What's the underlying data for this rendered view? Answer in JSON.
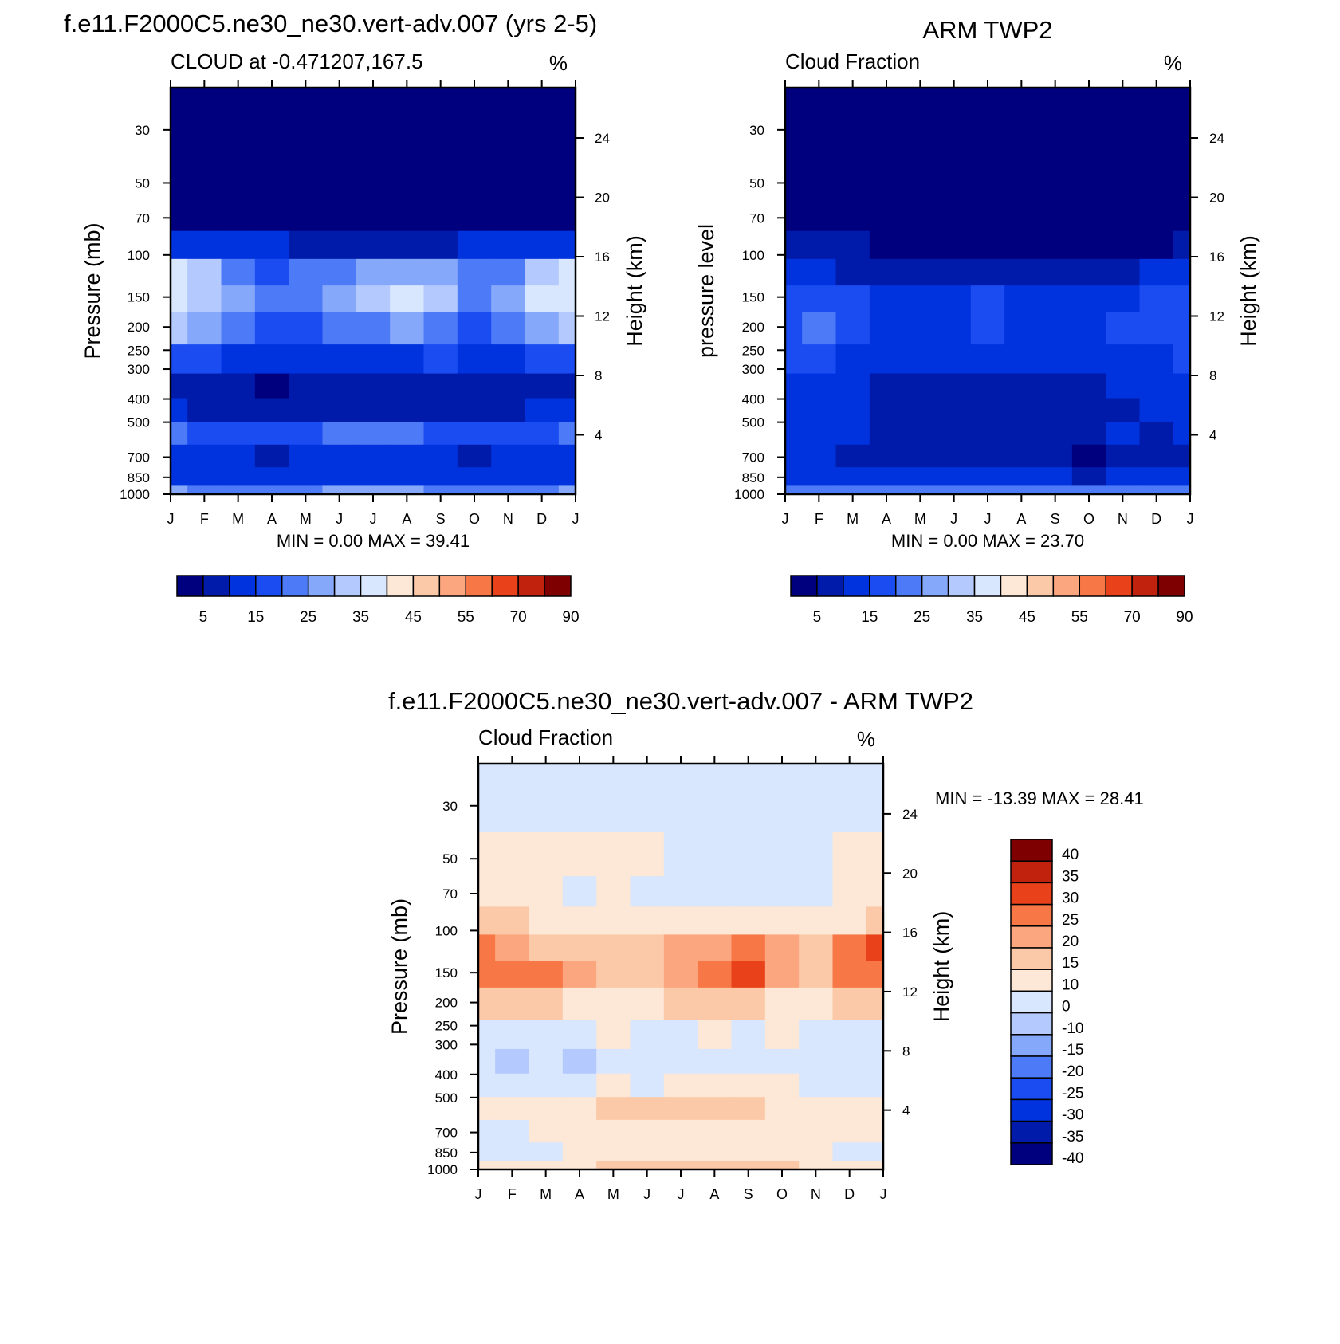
{
  "colors": {
    "abs_levels": [
      "#00007f",
      "#001aaa",
      "#0033dd",
      "#1a4cf2",
      "#4d7af7",
      "#86a8fa",
      "#b4c9fd",
      "#d8e7fd",
      "#fde7d6",
      "#fcc9a8",
      "#fba67e",
      "#f87747",
      "#e9421b",
      "#c0220d",
      "#7f0000"
    ],
    "diff_levels": [
      "#00007f",
      "#001aaa",
      "#0033dd",
      "#1a4cf2",
      "#4d7af7",
      "#86a8fa",
      "#b4c9fd",
      "#d8e7fd",
      "#fde7d6",
      "#fcc9a8",
      "#fba67e",
      "#f87747",
      "#e9421b",
      "#c0220d",
      "#7f0000"
    ]
  },
  "chart_data": [
    {
      "id": "model",
      "type": "heatmap",
      "title": "f.e11.F2000C5.ne30_ne30.vert-adv.007 (yrs 2-5)",
      "left_subtitle": "CLOUD at -0.471207,167.5",
      "units": "%",
      "ylabel": "Pressure (mb)",
      "right_ylabel": "Height (km)",
      "x_ticklabels": [
        "J",
        "F",
        "M",
        "A",
        "M",
        "J",
        "J",
        "A",
        "S",
        "O",
        "N",
        "D",
        "J"
      ],
      "y_ticklabels": [
        "30",
        "50",
        "70",
        "100",
        "150",
        "200",
        "250",
        "300",
        "400",
        "500",
        "700",
        "850",
        "1000"
      ],
      "height_ticklabels": [
        "24",
        "20",
        "16",
        "12",
        "8",
        "4"
      ],
      "minmax_text": "MIN =   0.00 MAX =  39.41",
      "colorbar_labels": [
        "5",
        "15",
        "25",
        "35",
        "45",
        "55",
        "70",
        "90"
      ],
      "levels": [
        0,
        5,
        10,
        15,
        20,
        25,
        30,
        35,
        40,
        45,
        50,
        55,
        60,
        70,
        80,
        90,
        100
      ],
      "x": [
        1,
        2,
        3,
        4,
        5,
        6,
        7,
        8,
        9,
        10,
        11,
        12,
        13
      ],
      "pressure": [
        30,
        70,
        90,
        120,
        150,
        200,
        280,
        350,
        450,
        550,
        700,
        850,
        1000
      ],
      "values": [
        [
          1,
          1,
          1,
          1,
          1,
          1,
          1,
          1,
          1,
          1,
          1,
          1,
          1
        ],
        [
          2,
          1,
          1,
          1,
          1,
          1,
          1,
          1,
          1,
          1,
          1,
          1,
          2
        ],
        [
          14,
          13,
          12,
          11,
          9,
          8,
          7,
          8,
          9,
          10,
          11,
          13,
          14
        ],
        [
          36,
          30,
          24,
          19,
          20,
          23,
          27,
          29,
          26,
          21,
          24,
          33,
          37
        ],
        [
          38,
          33,
          26,
          21,
          24,
          29,
          32,
          35,
          31,
          24,
          27,
          35,
          38
        ],
        [
          30,
          26,
          21,
          18,
          19,
          22,
          24,
          25,
          22,
          19,
          21,
          28,
          31
        ],
        [
          18,
          16,
          13,
          10,
          12,
          14,
          14,
          14,
          15,
          13,
          13,
          16,
          18
        ],
        [
          8,
          7,
          6,
          3,
          7,
          5,
          7,
          8,
          9,
          8,
          8,
          8,
          9
        ],
        [
          10,
          9,
          8,
          7,
          9,
          8,
          9,
          9,
          9,
          9,
          9,
          10,
          10
        ],
        [
          20,
          18,
          16,
          15,
          17,
          20,
          22,
          21,
          17,
          15,
          16,
          18,
          20
        ],
        [
          12,
          11,
          10,
          8,
          10,
          12,
          13,
          12,
          11,
          9,
          10,
          11,
          12
        ],
        [
          14,
          13,
          12,
          11,
          13,
          14,
          14,
          13,
          13,
          12,
          12,
          13,
          14
        ],
        [
          25,
          24,
          23,
          22,
          24,
          25,
          25,
          25,
          24,
          23,
          23,
          24,
          25
        ]
      ]
    },
    {
      "id": "obs",
      "type": "heatmap",
      "title": "ARM TWP2",
      "left_subtitle": "Cloud Fraction",
      "units": "%",
      "ylabel": "pressure level",
      "right_ylabel": "Height (km)",
      "x_ticklabels": [
        "J",
        "F",
        "M",
        "A",
        "M",
        "J",
        "J",
        "A",
        "S",
        "O",
        "N",
        "D",
        "J"
      ],
      "y_ticklabels": [
        "30",
        "50",
        "70",
        "100",
        "150",
        "200",
        "250",
        "300",
        "400",
        "500",
        "700",
        "850",
        "1000"
      ],
      "height_ticklabels": [
        "24",
        "20",
        "16",
        "12",
        "8",
        "4"
      ],
      "minmax_text": "MIN =   0.00 MAX =  23.70",
      "colorbar_labels": [
        "5",
        "15",
        "25",
        "35",
        "45",
        "55",
        "70",
        "90"
      ],
      "levels": [
        0,
        5,
        10,
        15,
        20,
        25,
        30,
        35,
        40,
        45,
        50,
        55,
        60,
        70,
        80,
        90,
        100
      ],
      "x": [
        1,
        2,
        3,
        4,
        5,
        6,
        7,
        8,
        9,
        10,
        11,
        12,
        13
      ],
      "pressure": [
        30,
        70,
        90,
        120,
        150,
        200,
        280,
        350,
        450,
        550,
        700,
        850,
        1000
      ],
      "values": [
        [
          1,
          1,
          1,
          1,
          1,
          1,
          1,
          1,
          1,
          1,
          1,
          1,
          1
        ],
        [
          1,
          1,
          1,
          1,
          1,
          1,
          1,
          1,
          1,
          1,
          1,
          1,
          1
        ],
        [
          6,
          6,
          5,
          3,
          2,
          2,
          3,
          2,
          2,
          2,
          3,
          4,
          7
        ],
        [
          12,
          11,
          9,
          8,
          7,
          7,
          7,
          7,
          6,
          8,
          9,
          10,
          13
        ],
        [
          17,
          17,
          15,
          12,
          11,
          14,
          15,
          13,
          11,
          13,
          14,
          15,
          18
        ],
        [
          18,
          20,
          16,
          13,
          12,
          14,
          16,
          13,
          12,
          14,
          15,
          16,
          17
        ],
        [
          17,
          18,
          14,
          12,
          11,
          12,
          12,
          12,
          11,
          12,
          13,
          14,
          15
        ],
        [
          12,
          13,
          11,
          9,
          8,
          8,
          9,
          9,
          7,
          8,
          10,
          11,
          12
        ],
        [
          12,
          13,
          12,
          9,
          7,
          7,
          7,
          7,
          6,
          7,
          9,
          10,
          11
        ],
        [
          12,
          11,
          10,
          9,
          7,
          7,
          8,
          9,
          7,
          6,
          10,
          9,
          10
        ],
        [
          11,
          10,
          9,
          8,
          5,
          7,
          6,
          7,
          6,
          4,
          7,
          8,
          9
        ],
        [
          14,
          13,
          12,
          11,
          10,
          10,
          10,
          10,
          10,
          9,
          11,
          12,
          13
        ],
        [
          22,
          22,
          21,
          21,
          20,
          20,
          20,
          20,
          20,
          20,
          21,
          21,
          22
        ]
      ]
    },
    {
      "id": "diff",
      "type": "heatmap",
      "title": "f.e11.F2000C5.ne30_ne30.vert-adv.007 - ARM TWP2",
      "left_subtitle": "Cloud Fraction",
      "units": "%",
      "ylabel": "Pressure (mb)",
      "right_ylabel": "Height (km)",
      "x_ticklabels": [
        "J",
        "F",
        "M",
        "A",
        "M",
        "J",
        "J",
        "A",
        "S",
        "O",
        "N",
        "D",
        "J"
      ],
      "y_ticklabels": [
        "30",
        "50",
        "70",
        "100",
        "150",
        "200",
        "250",
        "300",
        "400",
        "500",
        "700",
        "850",
        "1000"
      ],
      "height_ticklabels": [
        "24",
        "20",
        "16",
        "12",
        "8",
        "4"
      ],
      "minmax_text": "MIN = -13.39 MAX =  28.41",
      "colorbar_labels": [
        "40",
        "35",
        "30",
        "25",
        "20",
        "15",
        "10",
        "0",
        "-10",
        "-15",
        "-20",
        "-25",
        "-30",
        "-35",
        "-40"
      ],
      "levels": [
        -100,
        -40,
        -35,
        -30,
        -25,
        -20,
        -15,
        -10,
        0,
        10,
        15,
        20,
        25,
        30,
        35,
        40,
        100
      ],
      "x": [
        1,
        2,
        3,
        4,
        5,
        6,
        7,
        8,
        9,
        10,
        11,
        12,
        13
      ],
      "pressure": [
        30,
        50,
        70,
        90,
        120,
        150,
        200,
        280,
        350,
        450,
        550,
        700,
        850,
        1000
      ],
      "values": [
        [
          -1,
          -1,
          -1,
          -1,
          -1,
          -1,
          -1,
          -1,
          -1,
          -1,
          -1,
          -1,
          -1
        ],
        [
          1,
          1,
          1,
          1,
          1,
          1,
          -1,
          -1,
          -1,
          -1,
          -1,
          1,
          1
        ],
        [
          3,
          3,
          3,
          -1,
          3,
          -1,
          -1,
          -1,
          -1,
          -1,
          -1,
          3,
          4
        ],
        [
          12,
          10,
          8,
          6,
          5,
          5,
          5,
          5,
          5,
          5,
          5,
          7,
          12
        ],
        [
          24,
          18,
          14,
          10,
          10,
          14,
          16,
          18,
          22,
          17,
          12,
          20,
          26
        ],
        [
          22,
          20,
          22,
          15,
          12,
          14,
          16,
          20,
          25,
          16,
          12,
          20,
          23
        ],
        [
          14,
          13,
          11,
          9,
          6,
          8,
          10,
          11,
          12,
          9,
          7,
          11,
          14
        ],
        [
          -2,
          -3,
          -2,
          -4,
          2,
          -1,
          -1,
          1,
          -2,
          1,
          -3,
          -2,
          -1
        ],
        [
          -3,
          -11,
          -4,
          -11,
          -2,
          -1,
          -2,
          -1,
          -2,
          -1,
          -4,
          -3,
          -2
        ],
        [
          -2,
          -4,
          -4,
          -3,
          1,
          -2,
          3,
          3,
          2,
          2,
          -2,
          -1,
          -1
        ],
        [
          3,
          3,
          3,
          3,
          11,
          12,
          11,
          11,
          12,
          8,
          3,
          3,
          3
        ],
        [
          -1,
          -4,
          2,
          3,
          3,
          3,
          3,
          3,
          3,
          3,
          3,
          3,
          3
        ],
        [
          -2,
          -3,
          -1,
          2,
          3,
          3,
          4,
          3,
          3,
          3,
          2,
          -2,
          -1
        ],
        [
          3,
          3,
          3,
          3,
          11,
          11,
          11,
          11,
          11,
          11,
          3,
          3,
          3
        ]
      ]
    }
  ]
}
